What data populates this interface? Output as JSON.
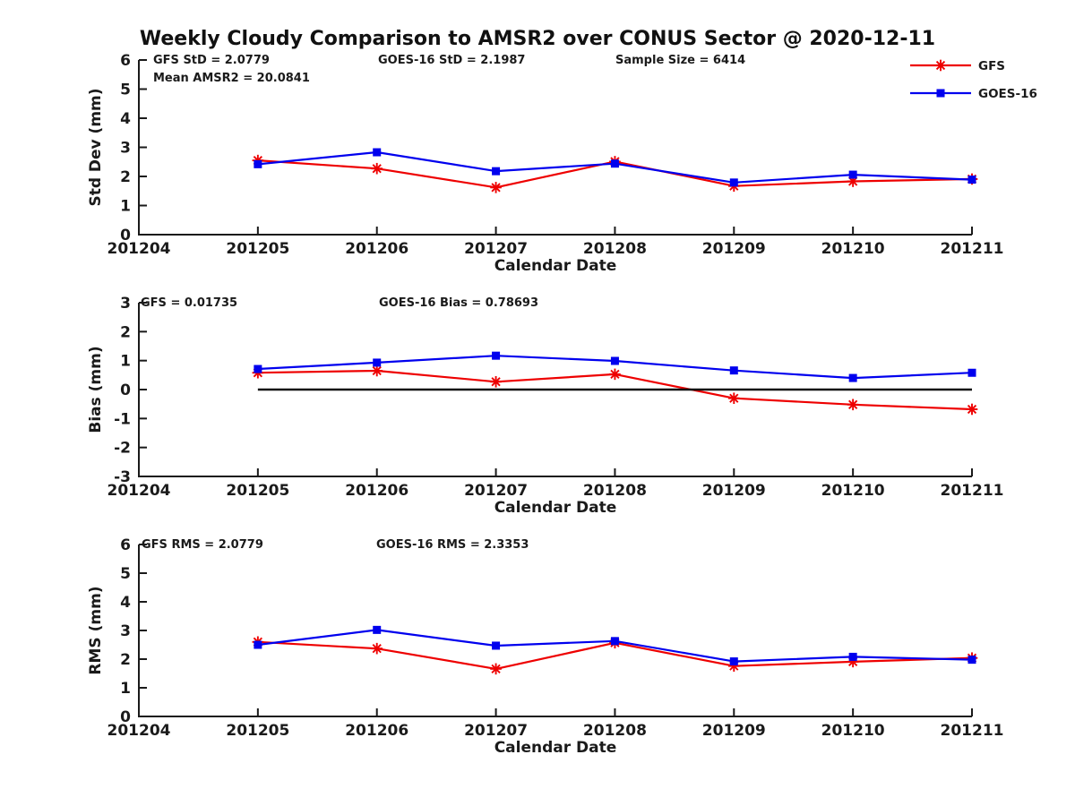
{
  "title": "Weekly Cloudy Comparison to AMSR2 over CONUS Sector @ 2020-12-11",
  "colors": {
    "gfs": "#ee0000",
    "goes16": "#0000ee",
    "axis": "#1a1a1a",
    "zero_line": "#111111"
  },
  "legend": {
    "position": "top-right",
    "items": [
      {
        "label": "GFS",
        "color": "#ee0000",
        "marker": "asterisk"
      },
      {
        "label": "GOES-16",
        "color": "#0000ee",
        "marker": "square"
      }
    ]
  },
  "chart_data": [
    {
      "type": "line",
      "ylabel": "Std Dev (mm)",
      "xlabel": "Calendar Date",
      "ylim": [
        0,
        6
      ],
      "yticks": [
        0,
        1,
        2,
        3,
        4,
        5,
        6
      ],
      "grid": false,
      "categories": [
        "201204",
        "201205",
        "201206",
        "201207",
        "201208",
        "201209",
        "201210",
        "201211"
      ],
      "x": [
        "201205",
        "201206",
        "201207",
        "201208",
        "201209",
        "201210",
        "201211"
      ],
      "series": [
        {
          "name": "GFS",
          "color": "#ee0000",
          "marker": "asterisk",
          "values": [
            2.55,
            2.27,
            1.62,
            2.51,
            1.67,
            1.83,
            1.91
          ]
        },
        {
          "name": "GOES-16",
          "color": "#0000ee",
          "marker": "square",
          "values": [
            2.42,
            2.83,
            2.18,
            2.44,
            1.79,
            2.06,
            1.89
          ]
        }
      ],
      "annotations": [
        {
          "text": "GFS StD = 2.0779",
          "col": 0,
          "row": 0
        },
        {
          "text": "Mean AMSR2 = 20.0841",
          "col": 0,
          "row": 1
        },
        {
          "text": "GOES-16 StD = 2.1987",
          "col": 1,
          "row": 0
        },
        {
          "text": "Sample Size = 6414",
          "col": 2,
          "row": 0
        }
      ],
      "zero_line": false
    },
    {
      "type": "line",
      "ylabel": "Bias (mm)",
      "xlabel": "Calendar Date",
      "ylim": [
        -3,
        3
      ],
      "yticks": [
        -3,
        -2,
        -1,
        0,
        1,
        2,
        3
      ],
      "grid": false,
      "categories": [
        "201204",
        "201205",
        "201206",
        "201207",
        "201208",
        "201209",
        "201210",
        "201211"
      ],
      "x": [
        "201205",
        "201206",
        "201207",
        "201208",
        "201209",
        "201210",
        "201211"
      ],
      "series": [
        {
          "name": "GFS",
          "color": "#ee0000",
          "marker": "asterisk",
          "values": [
            0.58,
            0.65,
            0.27,
            0.53,
            -0.3,
            -0.52,
            -0.68
          ]
        },
        {
          "name": "GOES-16",
          "color": "#0000ee",
          "marker": "square",
          "values": [
            0.71,
            0.93,
            1.17,
            0.99,
            0.66,
            0.4,
            0.58
          ]
        }
      ],
      "annotations": [
        {
          "text": "GFS = 0.01735",
          "col": 0,
          "row": 0
        },
        {
          "text": "GOES-16 Bias  = 0.78693",
          "col": 1,
          "row": 0
        }
      ],
      "zero_line": true
    },
    {
      "type": "line",
      "ylabel": "RMS (mm)",
      "xlabel": "Calendar Date",
      "ylim": [
        0,
        6
      ],
      "yticks": [
        0,
        1,
        2,
        3,
        4,
        5,
        6
      ],
      "grid": false,
      "categories": [
        "201204",
        "201205",
        "201206",
        "201207",
        "201208",
        "201209",
        "201210",
        "201211"
      ],
      "x": [
        "201205",
        "201206",
        "201207",
        "201208",
        "201209",
        "201210",
        "201211"
      ],
      "series": [
        {
          "name": "GFS",
          "color": "#ee0000",
          "marker": "asterisk",
          "values": [
            2.6,
            2.37,
            1.66,
            2.57,
            1.76,
            1.91,
            2.04
          ]
        },
        {
          "name": "GOES-16",
          "color": "#0000ee",
          "marker": "square",
          "values": [
            2.5,
            3.02,
            2.47,
            2.63,
            1.92,
            2.08,
            1.98
          ]
        }
      ],
      "annotations": [
        {
          "text": "GFS RMS = 2.0779",
          "col": 0,
          "row": 0
        },
        {
          "text": "GOES-16 RMS = 2.3353",
          "col": 1,
          "row": 0
        }
      ],
      "zero_line": false
    }
  ]
}
